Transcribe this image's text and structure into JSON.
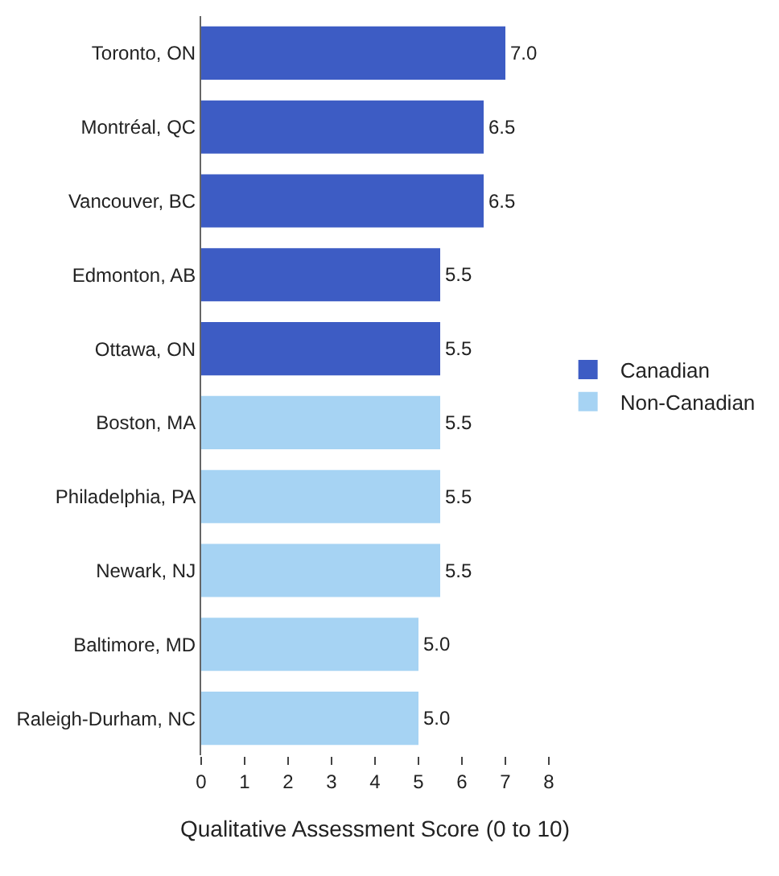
{
  "chart_data": {
    "type": "bar",
    "orientation": "horizontal",
    "xlabel": "Qualitative Assessment Score (0 to 10)",
    "categories": [
      "Toronto, ON",
      "Montréal, QC",
      "Vancouver, BC",
      "Edmonton, AB",
      "Ottawa, ON",
      "Boston, MA",
      "Philadelphia, PA",
      "Newark, NJ",
      "Baltimore, MD",
      "Raleigh-Durham, NC"
    ],
    "series": [
      {
        "name": "Canadian",
        "color": "#3d5cc4",
        "values": [
          7.0,
          6.5,
          6.5,
          5.5,
          5.5,
          null,
          null,
          null,
          null,
          null
        ],
        "value_labels": [
          "7.0",
          "6.5",
          "6.5",
          "5.5",
          "5.5",
          null,
          null,
          null,
          null,
          null
        ]
      },
      {
        "name": "Non-Canadian",
        "color": "#a6d3f3",
        "values": [
          null,
          null,
          null,
          null,
          null,
          5.5,
          5.5,
          5.5,
          5.0,
          5.0
        ],
        "value_labels": [
          null,
          null,
          null,
          null,
          null,
          "5.5",
          "5.5",
          "5.5",
          "5.0",
          "5.0"
        ]
      }
    ],
    "xlim": [
      0,
      8
    ],
    "xticks": [
      0,
      1,
      2,
      3,
      4,
      5,
      6,
      7,
      8
    ],
    "grid": false,
    "legend": "right"
  }
}
